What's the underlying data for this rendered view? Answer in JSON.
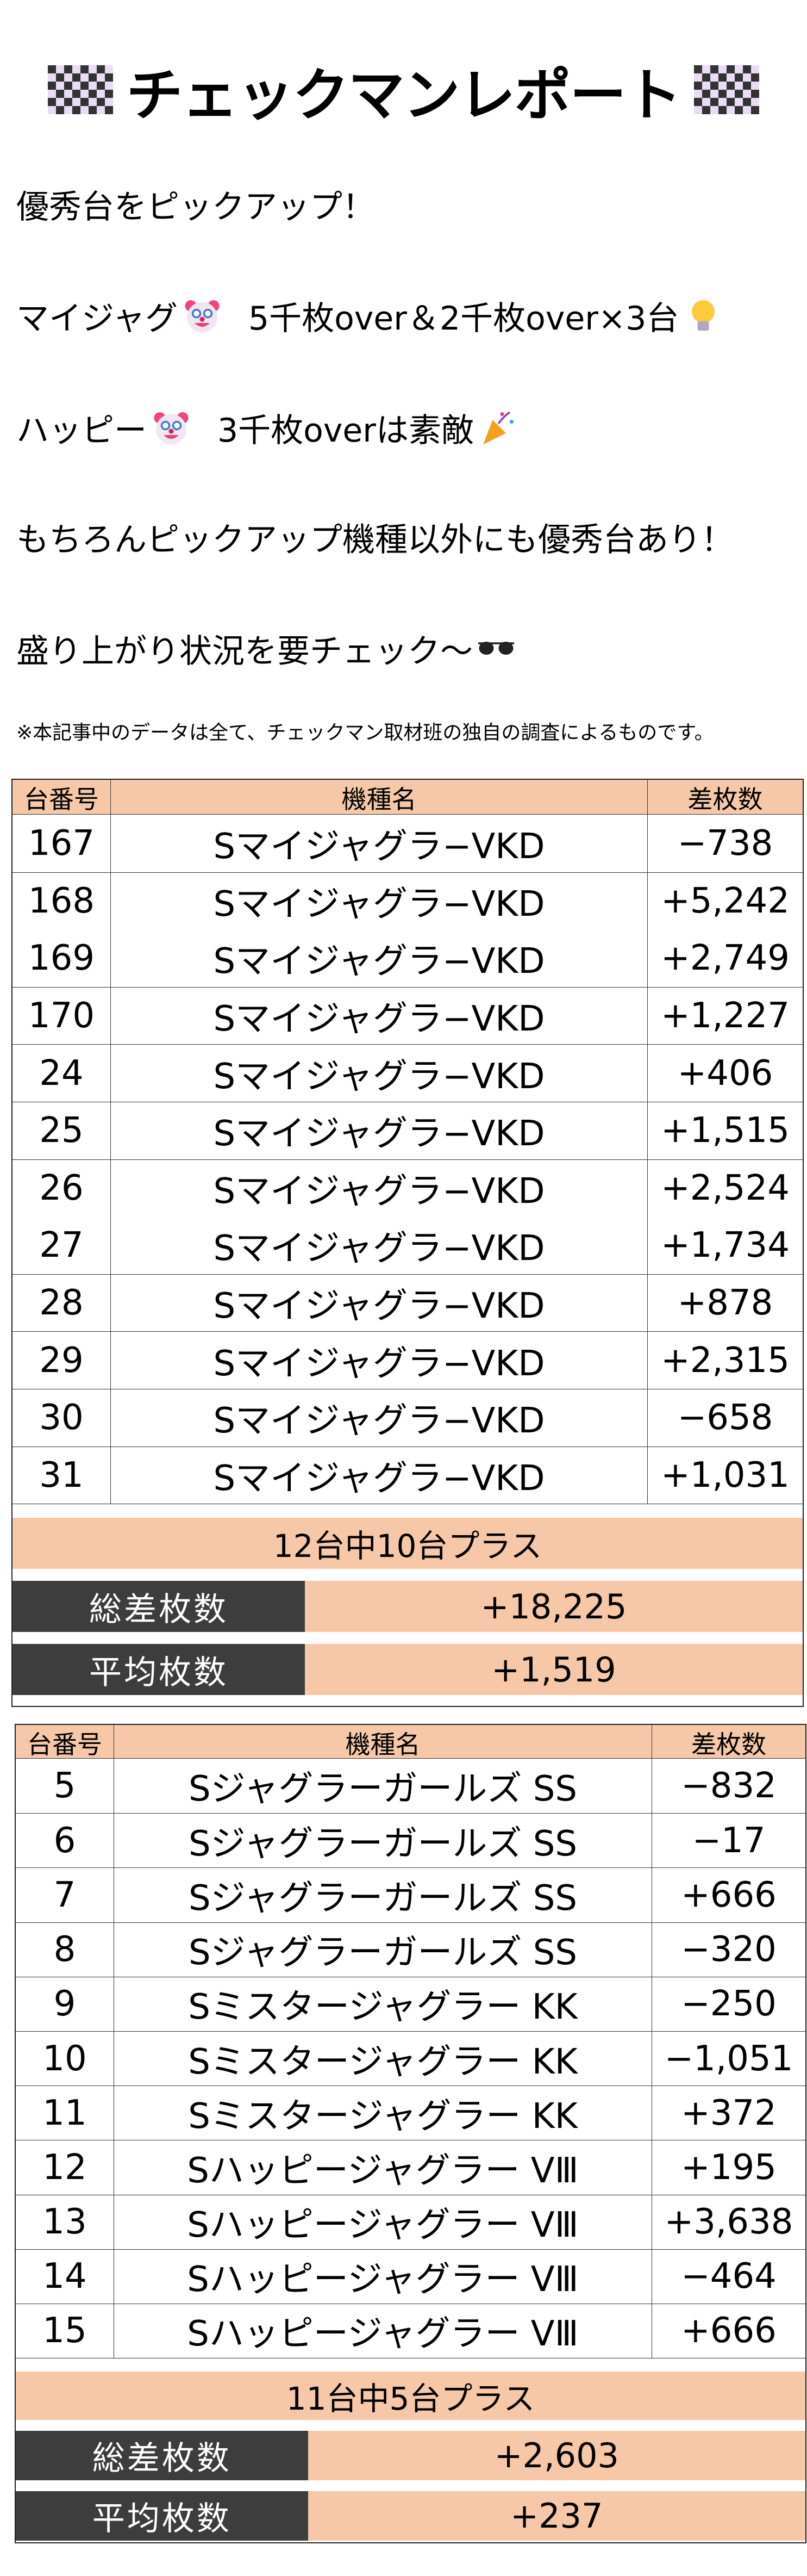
{
  "header": {
    "title": "チェックマンレポート",
    "flag_icon": "checkered-flag"
  },
  "intro": [
    {
      "text": "優秀台をピックアップ！"
    },
    {
      "text": "マイジャグ",
      "icon": "clown-face",
      "text2": "5千枚over＆2千枚over×3台",
      "icon2": "light-bulb"
    },
    {
      "text": "ハッピー",
      "icon": "clown-face",
      "text2": "3千枚overは素敵",
      "icon2": "party-popper"
    },
    {
      "text": "もちろんピックアップ機種以外にも優秀台あり！"
    },
    {
      "text": "盛り上がり状況を要チェック〜",
      "icon": "sunglasses"
    }
  ],
  "note": "※本記事中のデータは全て、チェックマン取材班の独自の調査によるものです。",
  "colors": {
    "header_bg": "#f6c8a8",
    "label_bg": "#3d3d3d"
  },
  "tables": [
    {
      "headers": [
        "台番号",
        "機種名",
        "差枚数"
      ],
      "rows": [
        {
          "no": "167",
          "model": "Sマイジャグラ−VKD",
          "diff": "−738"
        },
        {
          "no": "168",
          "model": "Sマイジャグラ−VKD",
          "diff": "+5,242"
        },
        {
          "no": "169",
          "model": "Sマイジャグラ−VKD",
          "diff": "+2,749"
        },
        {
          "no": "170",
          "model": "Sマイジャグラ−VKD",
          "diff": "+1,227"
        },
        {
          "no": "24",
          "model": "Sマイジャグラ−VKD",
          "diff": "+406"
        },
        {
          "no": "25",
          "model": "Sマイジャグラ−VKD",
          "diff": "+1,515"
        },
        {
          "no": "26",
          "model": "Sマイジャグラ−VKD",
          "diff": "+2,524"
        },
        {
          "no": "27",
          "model": "Sマイジャグラ−VKD",
          "diff": "+1,734"
        },
        {
          "no": "28",
          "model": "Sマイジャグラ−VKD",
          "diff": "+878"
        },
        {
          "no": "29",
          "model": "Sマイジャグラ−VKD",
          "diff": "+2,315"
        },
        {
          "no": "30",
          "model": "Sマイジャグラ−VKD",
          "diff": "−658"
        },
        {
          "no": "31",
          "model": "Sマイジャグラ−VKD",
          "diff": "+1,031"
        }
      ],
      "summary": "12台中10台プラス",
      "total_label": "総差枚数",
      "total": "+18,225",
      "avg_label": "平均枚数",
      "avg": "+1,519"
    },
    {
      "headers": [
        "台番号",
        "機種名",
        "差枚数"
      ],
      "rows": [
        {
          "no": "5",
          "model": "Sジャグラーガールズ SS",
          "diff": "−832"
        },
        {
          "no": "6",
          "model": "Sジャグラーガールズ SS",
          "diff": "−17"
        },
        {
          "no": "7",
          "model": "Sジャグラーガールズ SS",
          "diff": "+666"
        },
        {
          "no": "8",
          "model": "Sジャグラーガールズ SS",
          "diff": "−320"
        },
        {
          "no": "9",
          "model": "Sミスタージャグラー KK",
          "diff": "−250"
        },
        {
          "no": "10",
          "model": "Sミスタージャグラー KK",
          "diff": "−1,051"
        },
        {
          "no": "11",
          "model": "Sミスタージャグラー KK",
          "diff": "+372"
        },
        {
          "no": "12",
          "model": "Sハッピージャグラー VⅢ",
          "diff": "+195"
        },
        {
          "no": "13",
          "model": "Sハッピージャグラー VⅢ",
          "diff": "+3,638"
        },
        {
          "no": "14",
          "model": "Sハッピージャグラー VⅢ",
          "diff": "−464"
        },
        {
          "no": "15",
          "model": "Sハッピージャグラー VⅢ",
          "diff": "+666"
        }
      ],
      "summary": "11台中5台プラス",
      "total_label": "総差枚数",
      "total": "+2,603",
      "avg_label": "平均枚数",
      "avg": "+237"
    }
  ]
}
